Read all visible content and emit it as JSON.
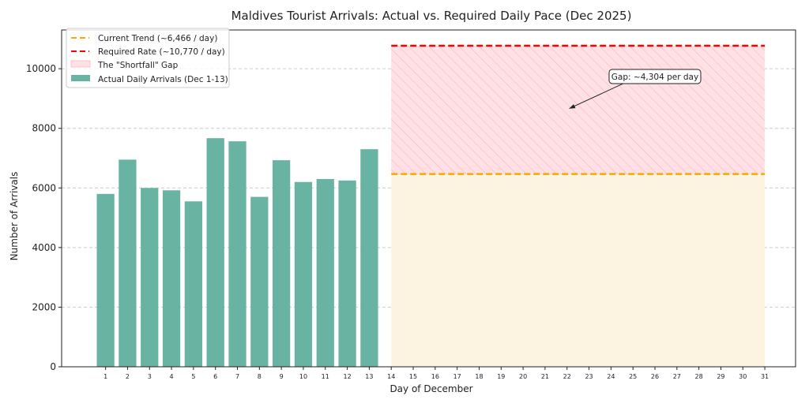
{
  "chart_data": {
    "type": "bar",
    "title": "Maldives Tourist Arrivals: Actual vs. Required Daily Pace (Dec 2025)",
    "xlabel": "Day of December",
    "ylabel": "Number of Arrivals",
    "xlim": [
      -1.0,
      32.4
    ],
    "ylim": [
      0,
      11300
    ],
    "yticks": [
      0,
      2000,
      4000,
      6000,
      8000,
      10000
    ],
    "xticks": [
      1,
      2,
      3,
      4,
      5,
      6,
      7,
      8,
      9,
      10,
      11,
      12,
      13,
      14,
      15,
      16,
      17,
      18,
      19,
      20,
      21,
      22,
      23,
      24,
      25,
      26,
      27,
      28,
      29,
      30,
      31
    ],
    "grid": "y-dashed",
    "legend_position": "top-left",
    "series": [
      {
        "name": "Actual Daily Arrivals (Dec 1-13)",
        "kind": "bar",
        "color": "#69b3a2",
        "x": [
          1,
          2,
          3,
          4,
          5,
          6,
          7,
          8,
          9,
          10,
          11,
          12,
          13
        ],
        "values": [
          5800,
          6950,
          6000,
          5920,
          5550,
          7670,
          7565,
          5700,
          6930,
          6200,
          6300,
          6250,
          7300
        ]
      },
      {
        "name": "Current Trend (~6,466 / day)",
        "kind": "hline",
        "color": "#ffa500",
        "y": 6466,
        "x_range": [
          14,
          31
        ]
      },
      {
        "name": "Required Rate (~10,770 / day)",
        "kind": "hline",
        "color": "#ff0000",
        "y": 10770,
        "x_range": [
          14,
          31
        ]
      },
      {
        "name": "The \"Shortfall\" Gap",
        "kind": "fill_between",
        "color": "#ffb6c1",
        "y_range": [
          6466,
          10770
        ],
        "x_range": [
          14,
          31
        ]
      }
    ],
    "trend_fill": {
      "color": "#fdf3e1",
      "y_range": [
        0,
        6466
      ],
      "x_range": [
        14,
        31
      ]
    },
    "annotation": {
      "text": "Gap: ~4,304 per day",
      "text_at": [
        26,
        9740
      ],
      "arrow_to": [
        22.1,
        8665
      ]
    }
  }
}
